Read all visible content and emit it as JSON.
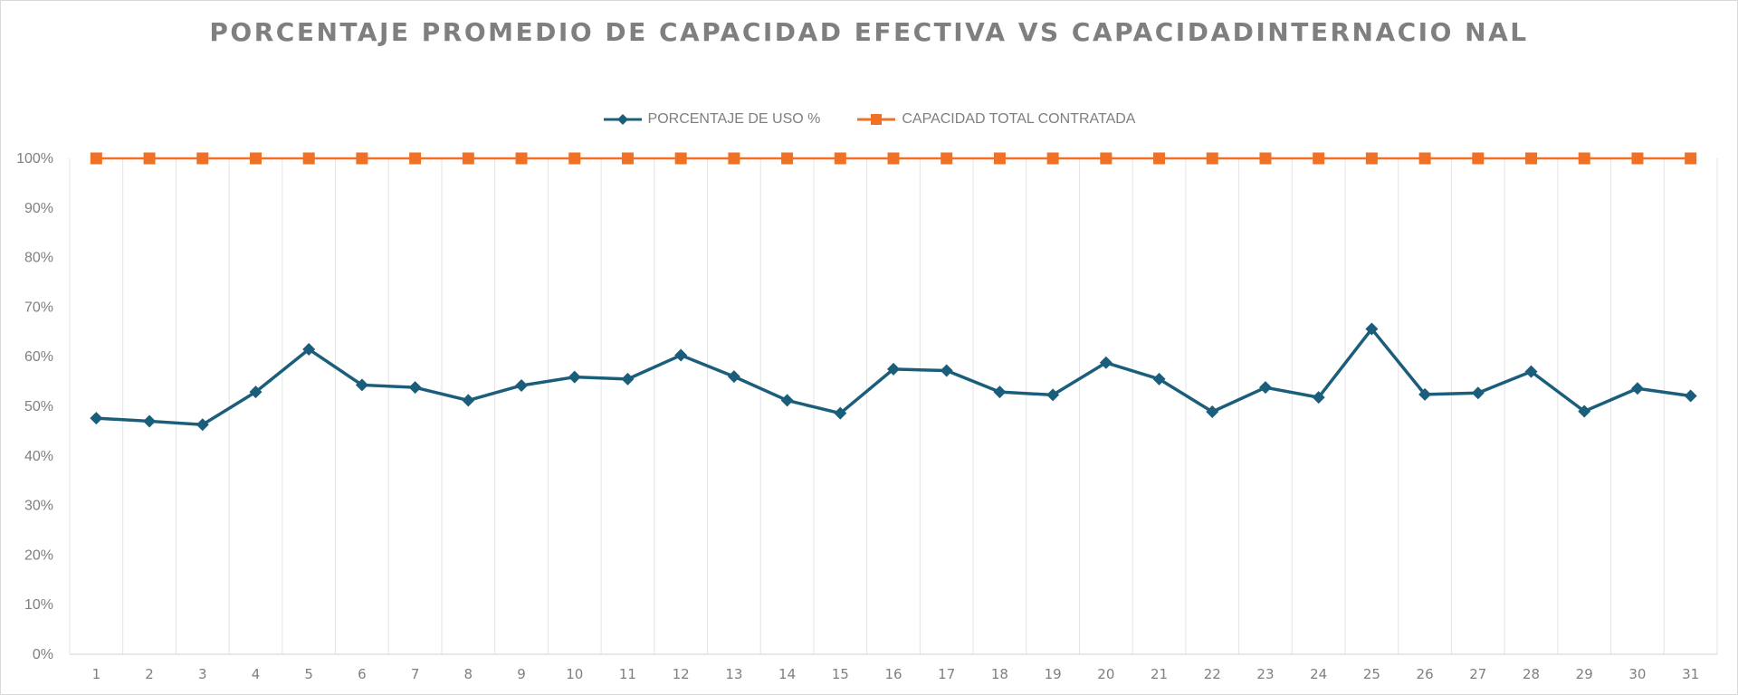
{
  "chart_data": {
    "type": "line",
    "title": "PORCENTAJE PROMEDIO DE CAPACIDAD EFECTIVA VS CAPACIDADINTERNACIO NAL",
    "xlabel": "",
    "ylabel": "",
    "categories": [
      "1",
      "2",
      "3",
      "4",
      "5",
      "6",
      "7",
      "8",
      "9",
      "10",
      "11",
      "12",
      "13",
      "14",
      "15",
      "16",
      "17",
      "18",
      "19",
      "20",
      "21",
      "22",
      "23",
      "24",
      "25",
      "26",
      "27",
      "28",
      "29",
      "30",
      "31"
    ],
    "yticks": [
      "0%",
      "10%",
      "20%",
      "30%",
      "40%",
      "50%",
      "60%",
      "70%",
      "80%",
      "90%",
      "100%"
    ],
    "ylim": [
      0,
      100
    ],
    "grid": "vertical",
    "legend_position": "top",
    "series": [
      {
        "name": "PORCENTAJE DE USO %",
        "color": "#1b5e7b",
        "marker": "diamond",
        "values": [
          47.6,
          47.0,
          46.3,
          52.9,
          61.5,
          54.3,
          53.8,
          51.2,
          54.2,
          55.9,
          55.5,
          60.3,
          56.0,
          51.2,
          48.6,
          57.5,
          57.2,
          52.9,
          52.3,
          58.8,
          55.5,
          48.9,
          53.8,
          51.8,
          65.6,
          52.4,
          52.7,
          57.0,
          49.0,
          53.6,
          52.1
        ]
      },
      {
        "name": "CAPACIDAD TOTAL CONTRATADA",
        "color": "#f07026",
        "marker": "square",
        "values": [
          100,
          100,
          100,
          100,
          100,
          100,
          100,
          100,
          100,
          100,
          100,
          100,
          100,
          100,
          100,
          100,
          100,
          100,
          100,
          100,
          100,
          100,
          100,
          100,
          100,
          100,
          100,
          100,
          100,
          100,
          100
        ]
      }
    ]
  }
}
